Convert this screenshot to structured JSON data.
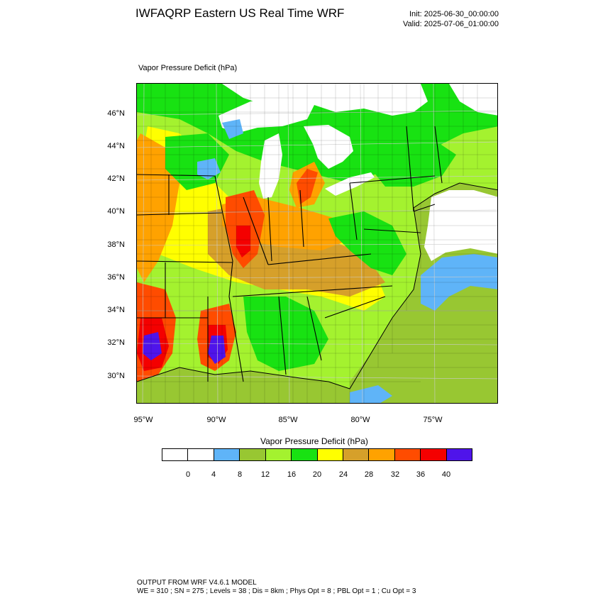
{
  "header": {
    "title": "IWFAQRP Eastern US Real Time WRF",
    "init": "Init: 2025-06-30_00:00:00",
    "valid": "Valid: 2025-07-06_01:00:00"
  },
  "plot": {
    "subtitle": "Vapor Pressure Deficit   (hPa)",
    "lat_labels": [
      "46°N",
      "44°N",
      "42°N",
      "40°N",
      "38°N",
      "36°N",
      "34°N",
      "32°N",
      "30°N"
    ],
    "lon_labels": [
      "95°W",
      "90°W",
      "85°W",
      "80°W",
      "75°W"
    ]
  },
  "colorbar": {
    "title": "Vapor Pressure Deficit  (hPa)",
    "labels": [
      "0",
      "4",
      "8",
      "12",
      "16",
      "20",
      "24",
      "28",
      "32",
      "36",
      "40"
    ],
    "colors": [
      "#ffffff",
      "#ffffff",
      "#5fb4f8",
      "#98c732",
      "#a4f22f",
      "#18e212",
      "#ffff00",
      "#d6a02a",
      "#ffa200",
      "#ff4c00",
      "#f40000",
      "#4f14ea"
    ]
  },
  "palette": {
    "water": "#ffffff",
    "lakes": "#ffffff",
    "ocean_cool": "#5fb4f8",
    "ocean_warm": "#98c732",
    "land_low": "#18e212",
    "land_mid": "#ffff00",
    "land_tan": "#d6a02a",
    "land_orange": "#ffa200",
    "land_hot": "#ff4c00",
    "land_red": "#f40000",
    "land_max": "#4f14ea"
  },
  "footer": {
    "line1": "OUTPUT FROM WRF V4.6.1 MODEL",
    "line2": "WE = 310 ; SN = 275 ; Levels = 38 ; Dis = 8km ; Phys Opt = 8 ; PBL Opt = 1 ; Cu Opt = 3"
  }
}
